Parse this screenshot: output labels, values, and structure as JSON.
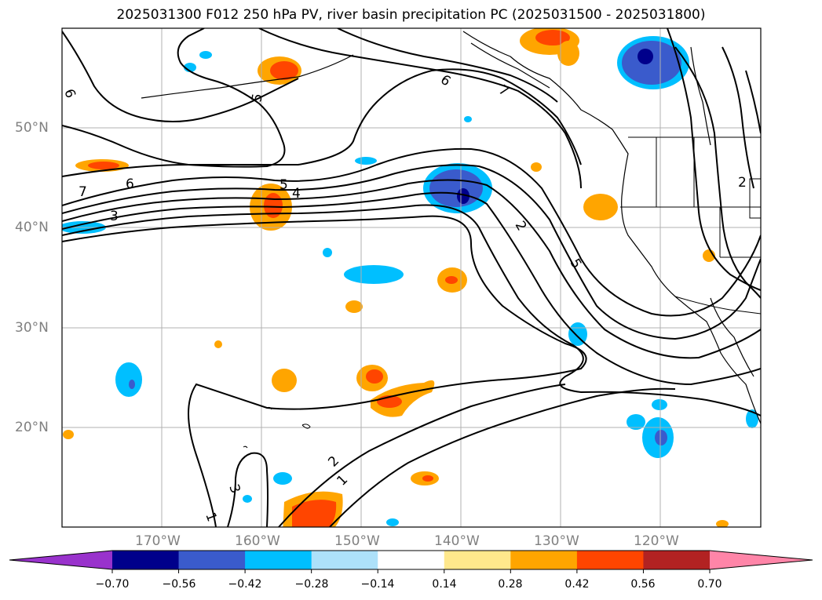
{
  "title": "2025031300 F012 250 hPa PV, river basin precipitation PC (2025031500 - 2025031800)",
  "lat_labels": [
    "50°N",
    "40°N",
    "30°N",
    "20°N"
  ],
  "lon_labels": [
    "170°W",
    "160°W",
    "150°W",
    "140°W",
    "130°W",
    "120°W"
  ],
  "contour_labels": [
    "6",
    "5",
    "7",
    "6",
    "3",
    "5",
    "4",
    "6",
    "7",
    "2",
    "5",
    "2",
    "3",
    "1",
    "1",
    "2",
    "6"
  ],
  "colorbar": {
    "ticks": [
      "−0.70",
      "−0.56",
      "−0.42",
      "−0.28",
      "−0.14",
      "0.14",
      "0.28",
      "0.42",
      "0.56",
      "0.70"
    ],
    "colors": [
      "#9932CC",
      "#00008B",
      "#3A5BCC",
      "#00BFFF",
      "#ADE1FA",
      "#FFFFFF",
      "#FFE88C",
      "#FFA500",
      "#FF4500",
      "#B22222",
      "#FF85A8"
    ]
  },
  "colors": {
    "land_outline": "#000000",
    "grid": "#b0b0b0",
    "label_gray": "#808080"
  }
}
